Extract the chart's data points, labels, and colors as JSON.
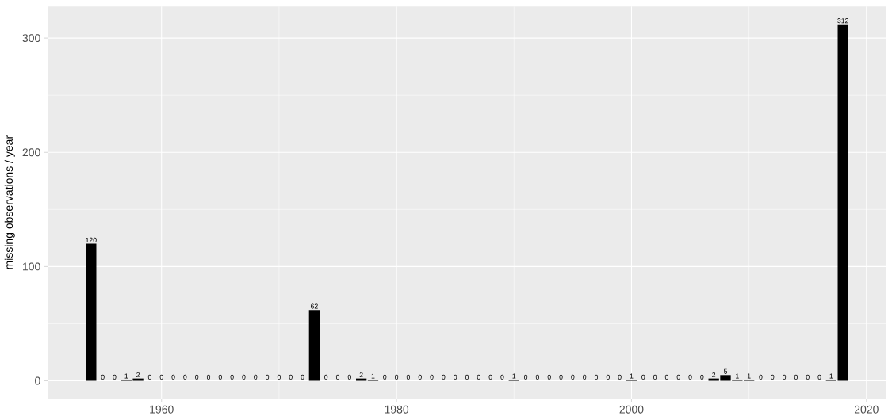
{
  "chart_data": {
    "type": "bar",
    "ylabel": "missing observations / year",
    "x": [
      1954,
      1955,
      1956,
      1957,
      1958,
      1959,
      1960,
      1961,
      1962,
      1963,
      1964,
      1965,
      1966,
      1967,
      1968,
      1969,
      1970,
      1971,
      1972,
      1973,
      1974,
      1975,
      1976,
      1977,
      1978,
      1979,
      1980,
      1981,
      1982,
      1983,
      1984,
      1985,
      1986,
      1987,
      1988,
      1989,
      1990,
      1991,
      1992,
      1993,
      1994,
      1995,
      1996,
      1997,
      1998,
      1999,
      2000,
      2001,
      2002,
      2003,
      2004,
      2005,
      2006,
      2007,
      2008,
      2009,
      2010,
      2011,
      2012,
      2013,
      2014,
      2015,
      2016,
      2017,
      2018
    ],
    "values": [
      120,
      0,
      0,
      1,
      2,
      0,
      0,
      0,
      0,
      0,
      0,
      0,
      0,
      0,
      0,
      0,
      0,
      0,
      0,
      62,
      0,
      0,
      0,
      2,
      1,
      0,
      0,
      0,
      0,
      0,
      0,
      0,
      0,
      0,
      0,
      0,
      1,
      0,
      0,
      0,
      0,
      0,
      0,
      0,
      0,
      0,
      1,
      0,
      0,
      0,
      0,
      0,
      0,
      2,
      5,
      1,
      1,
      0,
      0,
      0,
      0,
      0,
      0,
      1,
      312
    ],
    "color": "#000000",
    "data_labels": true,
    "grid": true,
    "xlim": [
      1950.3,
      2021.7
    ],
    "ylim": [
      -15.6,
      327.6
    ],
    "xticks": [
      1960,
      1980,
      2000,
      2020
    ],
    "yticks": [
      0,
      100,
      200,
      300
    ]
  }
}
